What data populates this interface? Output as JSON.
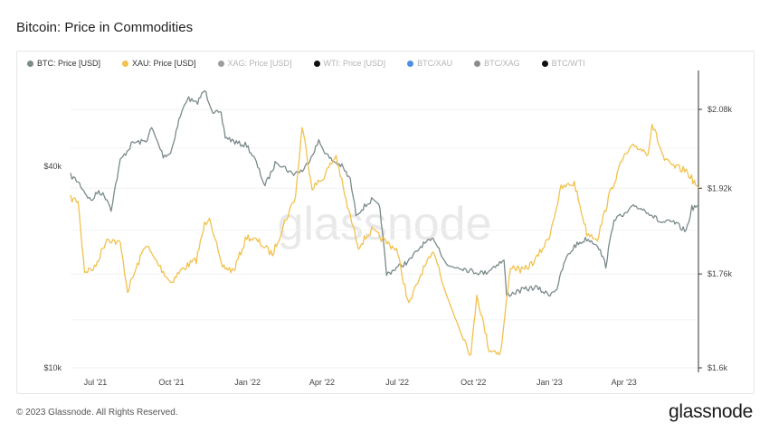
{
  "title": "Bitcoin: Price in Commodities",
  "footer": {
    "copyright": "© 2023 Glassnode. All Rights Reserved.",
    "logo": "glassnode"
  },
  "watermark": "glassnode",
  "legend": [
    {
      "label": "BTC: Price [USD]",
      "color": "#7b8a8b",
      "active": true
    },
    {
      "label": "XAU: Price [USD]",
      "color": "#f2c14e",
      "active": true
    },
    {
      "label": "XAG: Price [USD]",
      "color": "#9aa0a0",
      "active": false
    },
    {
      "label": "WTI: Price [USD]",
      "color": "#111111",
      "active": false
    },
    {
      "label": "BTC/XAU",
      "color": "#4a90e2",
      "active": false
    },
    {
      "label": "BTC/XAG",
      "color": "#8c8c8c",
      "active": false
    },
    {
      "label": "BTC/WTI",
      "color": "#111111",
      "active": false
    }
  ],
  "chart_data": {
    "type": "line",
    "x_ticks": [
      "Jul '21",
      "Oct '21",
      "Jan '22",
      "Apr '22",
      "Jul '22",
      "Oct '22",
      "Jan '23",
      "Apr '23"
    ],
    "y_left": {
      "scale": "log",
      "ticks": [
        "$10k",
        "$40k"
      ],
      "tick_values": [
        10000,
        40000
      ],
      "range": [
        10000,
        100000
      ]
    },
    "y_right": {
      "scale": "log",
      "ticks": [
        "$1.6k",
        "$1.76k",
        "$1.92k",
        "$2.08k"
      ],
      "tick_values": [
        1600,
        1760,
        1920,
        2080
      ],
      "range": [
        1600,
        2170
      ]
    },
    "x_range": [
      "2021-06-01",
      "2023-06-30"
    ],
    "grid": true,
    "series": [
      {
        "name": "BTC: Price [USD]",
        "axis": "left",
        "color": "#7b8a8b",
        "points": [
          [
            "2021-06-01",
            37500
          ],
          [
            "2021-06-10",
            36000
          ],
          [
            "2021-06-20",
            33000
          ],
          [
            "2021-06-26",
            31500
          ],
          [
            "2021-07-05",
            33800
          ],
          [
            "2021-07-15",
            32000
          ],
          [
            "2021-07-20",
            29800
          ],
          [
            "2021-07-31",
            41500
          ],
          [
            "2021-08-15",
            47000
          ],
          [
            "2021-08-31",
            47500
          ],
          [
            "2021-09-07",
            52000
          ],
          [
            "2021-09-21",
            43000
          ],
          [
            "2021-09-30",
            43800
          ],
          [
            "2021-10-10",
            55000
          ],
          [
            "2021-10-20",
            64000
          ],
          [
            "2021-10-31",
            61500
          ],
          [
            "2021-11-10",
            67500
          ],
          [
            "2021-11-20",
            58500
          ],
          [
            "2021-11-30",
            57000
          ],
          [
            "2021-12-05",
            49000
          ],
          [
            "2021-12-20",
            46800
          ],
          [
            "2021-12-31",
            46300
          ],
          [
            "2022-01-10",
            41800
          ],
          [
            "2022-01-22",
            35000
          ],
          [
            "2022-02-05",
            41500
          ],
          [
            "2022-02-24",
            38000
          ],
          [
            "2022-03-10",
            39000
          ],
          [
            "2022-03-28",
            47400
          ],
          [
            "2022-04-10",
            42200
          ],
          [
            "2022-04-25",
            40000
          ],
          [
            "2022-05-05",
            36500
          ],
          [
            "2022-05-12",
            28800
          ],
          [
            "2022-05-31",
            31700
          ],
          [
            "2022-06-10",
            30100
          ],
          [
            "2022-06-18",
            19000
          ],
          [
            "2022-06-30",
            19900
          ],
          [
            "2022-07-15",
            20800
          ],
          [
            "2022-07-31",
            23300
          ],
          [
            "2022-08-15",
            24200
          ],
          [
            "2022-08-31",
            20100
          ],
          [
            "2022-09-15",
            20000
          ],
          [
            "2022-09-30",
            19400
          ],
          [
            "2022-10-15",
            19200
          ],
          [
            "2022-10-31",
            20500
          ],
          [
            "2022-11-07",
            20900
          ],
          [
            "2022-11-10",
            16500
          ],
          [
            "2022-11-30",
            17100
          ],
          [
            "2022-12-15",
            17400
          ],
          [
            "2022-12-31",
            16550
          ],
          [
            "2023-01-10",
            17300
          ],
          [
            "2023-01-20",
            21000
          ],
          [
            "2023-01-31",
            23100
          ],
          [
            "2023-02-15",
            24300
          ],
          [
            "2023-02-28",
            23400
          ],
          [
            "2023-03-10",
            20200
          ],
          [
            "2023-03-20",
            28000
          ],
          [
            "2023-03-31",
            28400
          ],
          [
            "2023-04-14",
            30500
          ],
          [
            "2023-04-30",
            29300
          ],
          [
            "2023-05-15",
            27200
          ],
          [
            "2023-05-31",
            27200
          ],
          [
            "2023-06-15",
            25600
          ],
          [
            "2023-06-22",
            30000
          ],
          [
            "2023-06-30",
            30500
          ]
        ]
      },
      {
        "name": "XAU: Price [USD]",
        "axis": "right",
        "color": "#f2c14e",
        "points": [
          [
            "2021-06-01",
            1900
          ],
          [
            "2021-06-10",
            1895
          ],
          [
            "2021-06-18",
            1765
          ],
          [
            "2021-06-30",
            1770
          ],
          [
            "2021-07-15",
            1825
          ],
          [
            "2021-07-31",
            1815
          ],
          [
            "2021-08-09",
            1730
          ],
          [
            "2021-08-31",
            1815
          ],
          [
            "2021-09-07",
            1795
          ],
          [
            "2021-09-30",
            1745
          ],
          [
            "2021-10-15",
            1770
          ],
          [
            "2021-10-31",
            1785
          ],
          [
            "2021-11-10",
            1850
          ],
          [
            "2021-11-16",
            1868
          ],
          [
            "2021-11-30",
            1775
          ],
          [
            "2021-12-15",
            1765
          ],
          [
            "2021-12-31",
            1828
          ],
          [
            "2022-01-15",
            1818
          ],
          [
            "2022-01-31",
            1795
          ],
          [
            "2022-02-15",
            1855
          ],
          [
            "2022-02-28",
            1905
          ],
          [
            "2022-03-08",
            2045
          ],
          [
            "2022-03-20",
            1922
          ],
          [
            "2022-03-31",
            1935
          ],
          [
            "2022-04-18",
            1985
          ],
          [
            "2022-04-30",
            1895
          ],
          [
            "2022-05-15",
            1810
          ],
          [
            "2022-05-31",
            1840
          ],
          [
            "2022-06-15",
            1820
          ],
          [
            "2022-06-30",
            1805
          ],
          [
            "2022-07-15",
            1705
          ],
          [
            "2022-07-31",
            1765
          ],
          [
            "2022-08-15",
            1800
          ],
          [
            "2022-08-31",
            1715
          ],
          [
            "2022-09-15",
            1665
          ],
          [
            "2022-09-28",
            1620
          ],
          [
            "2022-10-05",
            1725
          ],
          [
            "2022-10-20",
            1630
          ],
          [
            "2022-11-03",
            1625
          ],
          [
            "2022-11-15",
            1775
          ],
          [
            "2022-11-30",
            1765
          ],
          [
            "2022-12-15",
            1785
          ],
          [
            "2022-12-31",
            1825
          ],
          [
            "2023-01-15",
            1920
          ],
          [
            "2023-01-31",
            1930
          ],
          [
            "2023-02-15",
            1835
          ],
          [
            "2023-02-28",
            1825
          ],
          [
            "2023-03-15",
            1910
          ],
          [
            "2023-03-31",
            1980
          ],
          [
            "2023-04-14",
            2005
          ],
          [
            "2023-04-30",
            1990
          ],
          [
            "2023-05-05",
            2050
          ],
          [
            "2023-05-20",
            1975
          ],
          [
            "2023-05-31",
            1962
          ],
          [
            "2023-06-15",
            1955
          ],
          [
            "2023-06-30",
            1920
          ]
        ]
      }
    ]
  }
}
